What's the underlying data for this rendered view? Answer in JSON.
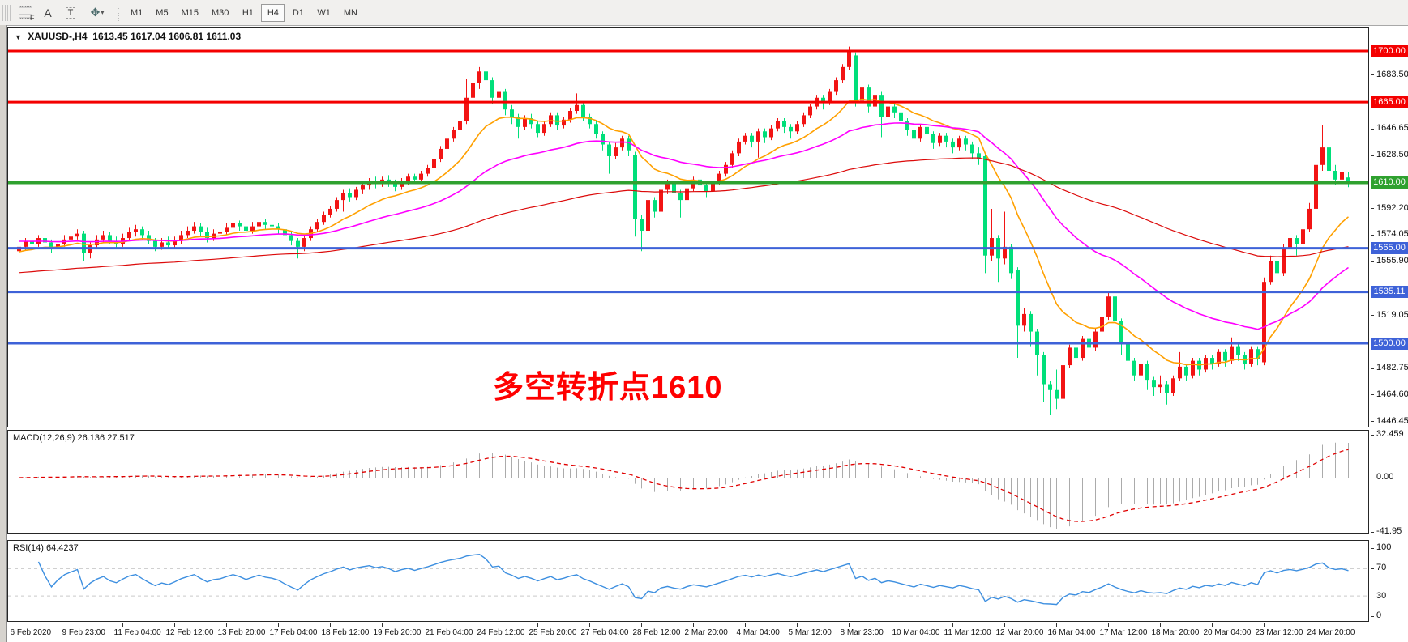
{
  "toolbar": {
    "f_label": "F",
    "a_label": "A",
    "t_label": "T",
    "arrows_glyph": "✥",
    "caret": "▾",
    "timeframes": [
      "M1",
      "M5",
      "M15",
      "M30",
      "H1",
      "H4",
      "D1",
      "W1",
      "MN"
    ],
    "active_timeframe": "H4"
  },
  "chart": {
    "dropdown_glyph": "▼",
    "symbol_label": "XAUUSD-,H4",
    "ohlc": "1613.45 1617.04 1606.81 1611.03",
    "annotation": "多空转折点1610"
  },
  "chart_data": {
    "type": "candlestick",
    "symbol": "XAUUSD",
    "timeframe": "H4",
    "ohlc_display": {
      "open": "1613.45",
      "high": "1617.04",
      "low": "1606.81",
      "close": "1611.03"
    },
    "colors": {
      "up": "#f21414",
      "down": "#00df7a",
      "level_red": "#f40000",
      "level_green": "#2fa12f",
      "level_blue": "#3e62d8",
      "ma_fast": "#ffa000",
      "ma_mid": "#ff00ff",
      "ma_slow": "#dc0a0a",
      "macd_hist": "#ababab",
      "macd_signal": "#e00000",
      "rsi_line": "#3d8fe0"
    },
    "y_axis_range": {
      "top_price": 1700,
      "bottom_price": 1446.45
    },
    "levels": [
      {
        "price": 1700.0,
        "label": "1700.00",
        "style": "red",
        "width": 3
      },
      {
        "price": 1665.0,
        "label": "1665.00",
        "style": "red",
        "width": 3
      },
      {
        "price": 1610.0,
        "label": "1610.00",
        "style": "green",
        "width": 4
      },
      {
        "price": 1565.0,
        "label": "1565.00",
        "style": "blue",
        "width": 3
      },
      {
        "price": 1535.11,
        "label": "1535.11",
        "style": "blue",
        "width": 3
      },
      {
        "price": 1500.0,
        "label": "1500.00",
        "style": "blue",
        "width": 3
      }
    ],
    "price_ticks": [
      {
        "text": "1683.50",
        "price": 1683.5
      },
      {
        "text": "1646.65",
        "price": 1646.65
      },
      {
        "text": "1628.50",
        "price": 1628.5
      },
      {
        "text": "1592.20",
        "price": 1592.2
      },
      {
        "text": "1574.05",
        "price": 1574.05
      },
      {
        "text": "1555.90",
        "price": 1555.9
      },
      {
        "text": "1519.05",
        "price": 1519.05
      },
      {
        "text": "1482.75",
        "price": 1482.75
      },
      {
        "text": "1464.60",
        "price": 1464.6
      },
      {
        "text": "1446.45",
        "price": 1446.45
      }
    ],
    "date_labels": [
      "6 Feb 2020",
      "9 Feb 23:00",
      "11 Feb 04:00",
      "12 Feb 12:00",
      "13 Feb 20:00",
      "17 Feb 04:00",
      "18 Feb 12:00",
      "19 Feb 20:00",
      "21 Feb 04:00",
      "24 Feb 12:00",
      "25 Feb 20:00",
      "27 Feb 04:00",
      "28 Feb 12:00",
      "2 Mar 20:00",
      "4 Mar 04:00",
      "5 Mar 12:00",
      "8 Mar 23:00",
      "10 Mar 04:00",
      "11 Mar 12:00",
      "12 Mar 20:00",
      "16 Mar 04:00",
      "17 Mar 12:00",
      "18 Mar 20:00",
      "20 Mar 04:00",
      "23 Mar 12:00",
      "24 Mar 20:00"
    ],
    "moving_averages": [
      {
        "name": "ema-fast",
        "period": 14,
        "seed": 1562,
        "color_key": "ma_fast",
        "stroke": 1.6
      },
      {
        "name": "ema-mid",
        "period": 40,
        "seed": 1570,
        "color_key": "ma_mid",
        "stroke": 1.6
      },
      {
        "name": "ema-slow",
        "period": 120,
        "seed": 1548,
        "color_key": "ma_slow",
        "stroke": 1.2
      }
    ],
    "candles": [
      [
        1563,
        1568,
        1559,
        1566
      ],
      [
        1566,
        1572,
        1564,
        1570
      ],
      [
        1570,
        1573,
        1566,
        1568
      ],
      [
        1568,
        1574,
        1566,
        1572
      ],
      [
        1572,
        1574,
        1567,
        1569
      ],
      [
        1569,
        1571,
        1562,
        1565
      ],
      [
        1565,
        1570,
        1563,
        1568
      ],
      [
        1568,
        1574,
        1566,
        1571
      ],
      [
        1571,
        1576,
        1569,
        1573
      ],
      [
        1573,
        1578,
        1571,
        1575
      ],
      [
        1575,
        1577,
        1556,
        1562
      ],
      [
        1562,
        1569,
        1558,
        1567
      ],
      [
        1567,
        1574,
        1565,
        1571
      ],
      [
        1571,
        1577,
        1569,
        1574
      ],
      [
        1574,
        1576,
        1568,
        1570
      ],
      [
        1570,
        1573,
        1565,
        1568
      ],
      [
        1568,
        1575,
        1566,
        1572
      ],
      [
        1572,
        1579,
        1570,
        1576
      ],
      [
        1576,
        1581,
        1573,
        1578
      ],
      [
        1578,
        1580,
        1571,
        1574
      ],
      [
        1574,
        1577,
        1568,
        1570
      ],
      [
        1570,
        1572,
        1563,
        1566
      ],
      [
        1566,
        1572,
        1564,
        1569
      ],
      [
        1569,
        1573,
        1565,
        1567
      ],
      [
        1567,
        1573,
        1565,
        1570
      ],
      [
        1570,
        1577,
        1568,
        1574
      ],
      [
        1574,
        1580,
        1572,
        1577
      ],
      [
        1577,
        1583,
        1575,
        1580
      ],
      [
        1580,
        1582,
        1573,
        1576
      ],
      [
        1576,
        1579,
        1569,
        1572
      ],
      [
        1572,
        1578,
        1570,
        1575
      ],
      [
        1575,
        1579,
        1572,
        1576
      ],
      [
        1576,
        1582,
        1574,
        1579
      ],
      [
        1579,
        1585,
        1577,
        1582
      ],
      [
        1582,
        1584,
        1577,
        1580
      ],
      [
        1580,
        1583,
        1574,
        1577
      ],
      [
        1577,
        1583,
        1575,
        1580
      ],
      [
        1580,
        1586,
        1578,
        1583
      ],
      [
        1583,
        1585,
        1578,
        1581
      ],
      [
        1581,
        1584,
        1577,
        1580
      ],
      [
        1580,
        1582,
        1575,
        1578
      ],
      [
        1578,
        1580,
        1571,
        1574
      ],
      [
        1574,
        1576,
        1567,
        1570
      ],
      [
        1570,
        1572,
        1558,
        1566
      ],
      [
        1566,
        1574,
        1563,
        1572
      ],
      [
        1572,
        1580,
        1570,
        1578
      ],
      [
        1578,
        1585,
        1576,
        1583
      ],
      [
        1583,
        1590,
        1581,
        1588
      ],
      [
        1588,
        1594,
        1586,
        1592
      ],
      [
        1592,
        1600,
        1590,
        1598
      ],
      [
        1598,
        1605,
        1590,
        1603
      ],
      [
        1603,
        1606,
        1597,
        1600
      ],
      [
        1600,
        1607,
        1598,
        1605
      ],
      [
        1605,
        1610,
        1602,
        1608
      ],
      [
        1608,
        1613,
        1605,
        1611
      ],
      [
        1611,
        1614,
        1606,
        1609
      ],
      [
        1609,
        1614,
        1607,
        1612
      ],
      [
        1612,
        1615,
        1607,
        1610
      ],
      [
        1610,
        1612,
        1604,
        1607
      ],
      [
        1607,
        1613,
        1605,
        1611
      ],
      [
        1611,
        1616,
        1608,
        1614
      ],
      [
        1614,
        1616,
        1609,
        1612
      ],
      [
        1612,
        1618,
        1610,
        1616
      ],
      [
        1616,
        1622,
        1614,
        1620
      ],
      [
        1620,
        1628,
        1618,
        1626
      ],
      [
        1626,
        1635,
        1624,
        1633
      ],
      [
        1633,
        1642,
        1631,
        1640
      ],
      [
        1640,
        1648,
        1638,
        1646
      ],
      [
        1646,
        1654,
        1644,
        1652
      ],
      [
        1652,
        1681,
        1650,
        1668
      ],
      [
        1668,
        1684,
        1664,
        1678
      ],
      [
        1678,
        1689,
        1674,
        1686
      ],
      [
        1686,
        1688,
        1676,
        1680
      ],
      [
        1680,
        1682,
        1664,
        1668
      ],
      [
        1668,
        1676,
        1666,
        1672
      ],
      [
        1672,
        1674,
        1656,
        1660
      ],
      [
        1660,
        1663,
        1650,
        1655
      ],
      [
        1655,
        1657,
        1640,
        1648
      ],
      [
        1648,
        1656,
        1646,
        1654
      ],
      [
        1654,
        1657,
        1647,
        1650
      ],
      [
        1650,
        1652,
        1641,
        1644
      ],
      [
        1644,
        1652,
        1642,
        1650
      ],
      [
        1650,
        1658,
        1648,
        1656
      ],
      [
        1656,
        1658,
        1646,
        1649
      ],
      [
        1649,
        1655,
        1647,
        1653
      ],
      [
        1653,
        1661,
        1651,
        1659
      ],
      [
        1659,
        1671,
        1657,
        1663
      ],
      [
        1663,
        1665,
        1652,
        1655
      ],
      [
        1655,
        1657,
        1647,
        1650
      ],
      [
        1650,
        1652,
        1640,
        1643
      ],
      [
        1643,
        1645,
        1632,
        1636
      ],
      [
        1636,
        1638,
        1616,
        1628
      ],
      [
        1628,
        1637,
        1626,
        1634
      ],
      [
        1634,
        1642,
        1632,
        1640
      ],
      [
        1640,
        1642,
        1628,
        1632
      ],
      [
        1629,
        1631,
        1573,
        1585
      ],
      [
        1585,
        1588,
        1563,
        1577
      ],
      [
        1577,
        1600,
        1575,
        1598
      ],
      [
        1598,
        1600,
        1586,
        1590
      ],
      [
        1590,
        1607,
        1588,
        1605
      ],
      [
        1605,
        1612,
        1602,
        1610
      ],
      [
        1610,
        1612,
        1599,
        1603
      ],
      [
        1603,
        1605,
        1586,
        1598
      ],
      [
        1598,
        1608,
        1596,
        1606
      ],
      [
        1606,
        1614,
        1604,
        1612
      ],
      [
        1612,
        1614,
        1605,
        1608
      ],
      [
        1608,
        1610,
        1600,
        1604
      ],
      [
        1604,
        1612,
        1602,
        1610
      ],
      [
        1610,
        1618,
        1608,
        1616
      ],
      [
        1616,
        1624,
        1614,
        1622
      ],
      [
        1622,
        1632,
        1620,
        1630
      ],
      [
        1630,
        1640,
        1628,
        1638
      ],
      [
        1638,
        1644,
        1636,
        1642
      ],
      [
        1642,
        1644,
        1634,
        1638
      ],
      [
        1638,
        1647,
        1627,
        1645
      ],
      [
        1645,
        1647,
        1637,
        1641
      ],
      [
        1641,
        1649,
        1639,
        1647
      ],
      [
        1647,
        1654,
        1645,
        1652
      ],
      [
        1652,
        1654,
        1644,
        1648
      ],
      [
        1648,
        1650,
        1640,
        1645
      ],
      [
        1645,
        1652,
        1643,
        1650
      ],
      [
        1650,
        1658,
        1648,
        1656
      ],
      [
        1656,
        1664,
        1654,
        1662
      ],
      [
        1662,
        1670,
        1660,
        1668
      ],
      [
        1668,
        1670,
        1660,
        1665
      ],
      [
        1665,
        1674,
        1663,
        1672
      ],
      [
        1672,
        1682,
        1670,
        1680
      ],
      [
        1680,
        1691,
        1678,
        1689
      ],
      [
        1689,
        1703,
        1687,
        1700
      ],
      [
        1697,
        1699,
        1662,
        1666
      ],
      [
        1666,
        1677,
        1664,
        1675
      ],
      [
        1675,
        1677,
        1658,
        1662
      ],
      [
        1662,
        1672,
        1660,
        1670
      ],
      [
        1670,
        1672,
        1641,
        1655
      ],
      [
        1655,
        1664,
        1653,
        1662
      ],
      [
        1662,
        1664,
        1654,
        1658
      ],
      [
        1658,
        1660,
        1648,
        1652
      ],
      [
        1652,
        1654,
        1642,
        1646
      ],
      [
        1646,
        1648,
        1631,
        1640
      ],
      [
        1640,
        1650,
        1638,
        1648
      ],
      [
        1648,
        1650,
        1639,
        1643
      ],
      [
        1643,
        1645,
        1633,
        1637
      ],
      [
        1637,
        1644,
        1635,
        1642
      ],
      [
        1642,
        1644,
        1634,
        1638
      ],
      [
        1638,
        1640,
        1630,
        1634
      ],
      [
        1634,
        1642,
        1632,
        1640
      ],
      [
        1640,
        1642,
        1632,
        1636
      ],
      [
        1636,
        1638,
        1626,
        1630
      ],
      [
        1630,
        1634,
        1622,
        1626
      ],
      [
        1628,
        1630,
        1548,
        1560
      ],
      [
        1560,
        1592,
        1556,
        1572
      ],
      [
        1572,
        1574,
        1542,
        1558
      ],
      [
        1558,
        1590,
        1554,
        1566
      ],
      [
        1566,
        1568,
        1544,
        1548
      ],
      [
        1550,
        1552,
        1490,
        1512
      ],
      [
        1512,
        1524,
        1508,
        1520
      ],
      [
        1520,
        1522,
        1498,
        1508
      ],
      [
        1508,
        1510,
        1478,
        1492
      ],
      [
        1492,
        1494,
        1460,
        1472
      ],
      [
        1472,
        1474,
        1451,
        1468
      ],
      [
        1468,
        1482,
        1455,
        1462
      ],
      [
        1462,
        1488,
        1458,
        1485
      ],
      [
        1485,
        1499,
        1483,
        1497
      ],
      [
        1497,
        1499,
        1486,
        1490
      ],
      [
        1490,
        1505,
        1488,
        1503
      ],
      [
        1503,
        1505,
        1484,
        1497
      ],
      [
        1497,
        1510,
        1495,
        1508
      ],
      [
        1508,
        1520,
        1506,
        1518
      ],
      [
        1518,
        1536,
        1516,
        1532
      ],
      [
        1532,
        1534,
        1512,
        1515
      ],
      [
        1515,
        1517,
        1492,
        1500
      ],
      [
        1500,
        1502,
        1473,
        1488
      ],
      [
        1488,
        1490,
        1474,
        1478
      ],
      [
        1478,
        1488,
        1476,
        1486
      ],
      [
        1486,
        1488,
        1468,
        1475
      ],
      [
        1475,
        1477,
        1464,
        1470
      ],
      [
        1470,
        1478,
        1466,
        1472
      ],
      [
        1472,
        1474,
        1458,
        1466
      ],
      [
        1466,
        1478,
        1464,
        1476
      ],
      [
        1476,
        1494,
        1474,
        1484
      ],
      [
        1484,
        1486,
        1474,
        1478
      ],
      [
        1478,
        1490,
        1476,
        1488
      ],
      [
        1488,
        1490,
        1478,
        1482
      ],
      [
        1482,
        1492,
        1480,
        1490
      ],
      [
        1490,
        1492,
        1482,
        1486
      ],
      [
        1486,
        1496,
        1484,
        1494
      ],
      [
        1494,
        1496,
        1484,
        1488
      ],
      [
        1488,
        1504,
        1486,
        1498
      ],
      [
        1498,
        1500,
        1488,
        1492
      ],
      [
        1492,
        1494,
        1482,
        1486
      ],
      [
        1486,
        1498,
        1484,
        1496
      ],
      [
        1496,
        1498,
        1485,
        1489
      ],
      [
        1487,
        1545,
        1485,
        1542
      ],
      [
        1542,
        1560,
        1540,
        1556
      ],
      [
        1556,
        1558,
        1535,
        1548
      ],
      [
        1548,
        1568,
        1546,
        1565
      ],
      [
        1565,
        1580,
        1563,
        1572
      ],
      [
        1572,
        1574,
        1560,
        1568
      ],
      [
        1568,
        1580,
        1566,
        1578
      ],
      [
        1578,
        1596,
        1576,
        1592
      ],
      [
        1592,
        1645,
        1590,
        1622
      ],
      [
        1622,
        1649,
        1618,
        1634
      ],
      [
        1634,
        1636,
        1606,
        1618
      ],
      [
        1618,
        1622,
        1608,
        1612
      ],
      [
        1612,
        1620,
        1610,
        1617
      ],
      [
        1613.45,
        1617.04,
        1606.81,
        1611.03
      ]
    ],
    "macd": {
      "label": "MACD(12,26,9)",
      "main_value": "26.136",
      "signal_value": "27.517",
      "params": [
        12,
        26,
        9
      ],
      "axis_labels": [
        "32.459",
        "0.00",
        "-41.95"
      ]
    },
    "rsi": {
      "label": "RSI(14)",
      "value": "64.4237",
      "period": 14,
      "axis_labels": [
        "100",
        "70",
        "30",
        "0"
      ],
      "levels": [
        70,
        30
      ]
    }
  }
}
